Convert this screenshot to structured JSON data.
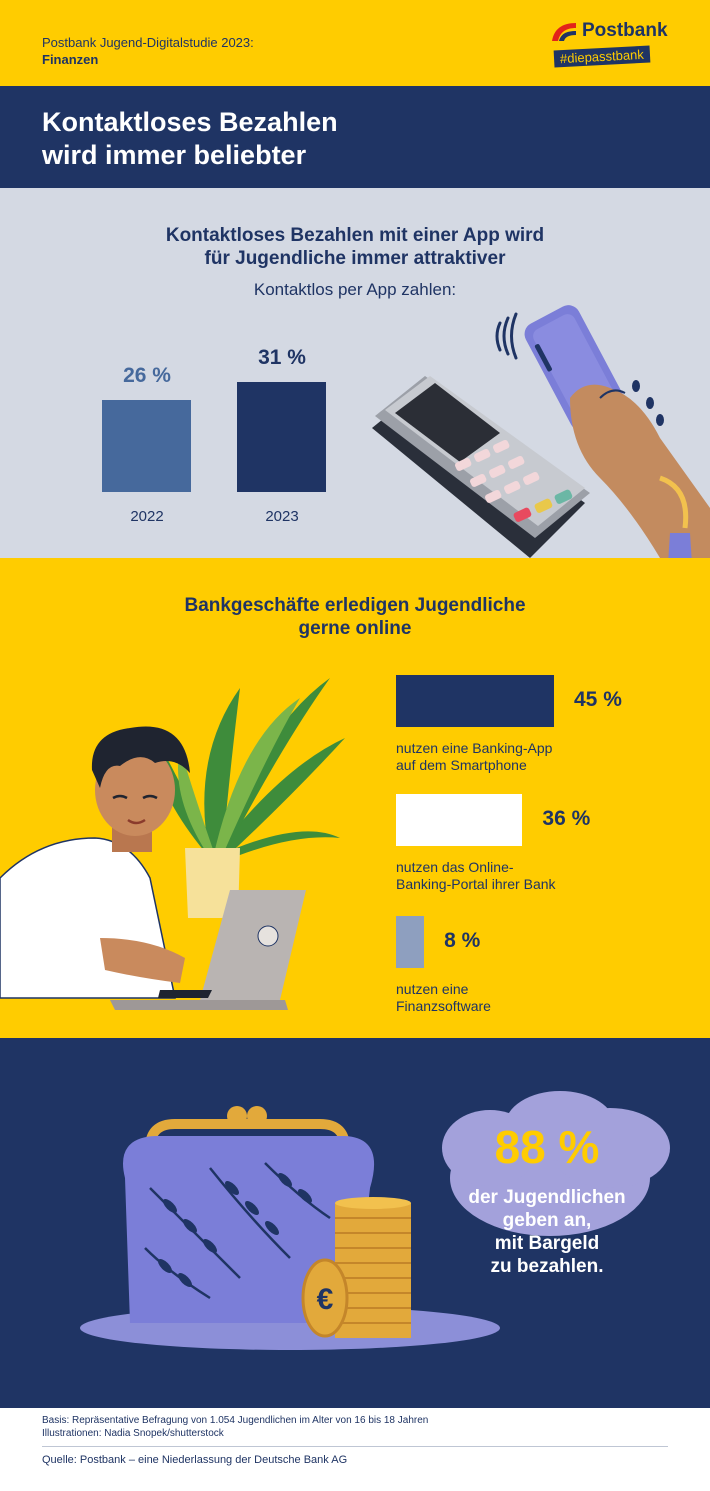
{
  "header": {
    "subtitle_line1": "Postbank Jugend-Digitalstudie 2023:",
    "subtitle_line2": "Finanzen",
    "logo_word": "Postbank",
    "logo_tag": "#diepasstbank"
  },
  "title": "Kontaktloses Bezahlen\nwird immer beliebter",
  "section1": {
    "heading": "Kontaktloses Bezahlen mit einer App wird\nfür Jugendliche immer attraktiver",
    "subheading": "Kontaktlos per App zahlen:"
  },
  "section2": {
    "heading": "Bankgeschäfte erledigen Jugendliche\ngerne online"
  },
  "section3": {
    "value": "88 %",
    "text": "der Jugendlichen\ngeben an,\nmit Bargeld\nzu bezahlen."
  },
  "footer": {
    "basis": "Basis: Repräsentative Befragung von 1.054 Jugendlichen im Alter von 16 bis 18 Jahren",
    "illustrations": "Illustrationen: Nadia Snopek/shutterstock",
    "source": "Quelle: Postbank – eine Niederlassung der Deutsche Bank AG"
  },
  "colors": {
    "navy": "#1F3464",
    "yellow": "#FFCC00",
    "steel": "#46699C",
    "grey_bg": "#D4D9E3",
    "light_blue": "#8E9FBF",
    "white": "#FFFFFF"
  },
  "chart_data": [
    {
      "type": "bar",
      "categories": [
        "2022",
        "2023"
      ],
      "values": [
        26,
        31
      ],
      "value_labels": [
        "26 %",
        "31 %"
      ],
      "bar_colors": [
        "#46699C",
        "#1F3464"
      ],
      "ylim": [
        0,
        31
      ]
    },
    {
      "type": "bar",
      "orientation": "horizontal",
      "categories": [
        "nutzen eine Banking-App\nauf dem Smartphone",
        "nutzen das Online-\nBanking-Portal ihrer Bank",
        "nutzen eine\nFinanzsoftware"
      ],
      "values": [
        45,
        36,
        8
      ],
      "value_labels": [
        "45 %",
        "36 %",
        "8 %"
      ],
      "bar_colors": [
        "#1F3464",
        "#FFFFFF",
        "#8E9FBF"
      ],
      "xlim": [
        0,
        45
      ]
    }
  ]
}
